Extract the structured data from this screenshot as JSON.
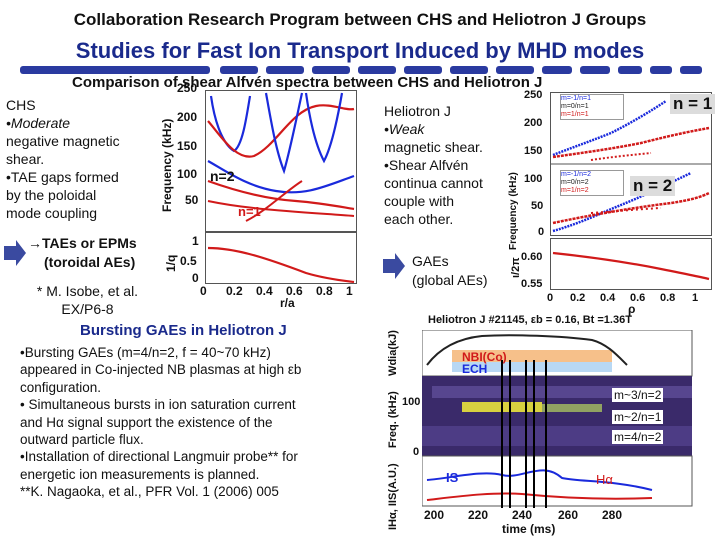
{
  "header": {
    "title": "Collaboration Research Program between CHS and Heliotron J Groups",
    "subtitle": "Studies for Fast Ion Transport Induced by MHD modes",
    "comparison": "Comparison of shear Alfvén spectra between CHS and Heliotron J"
  },
  "chs": {
    "heading": "CHS",
    "bullets": [
      "•Moderate",
      "negative magnetic",
      "shear.",
      "•TAE gaps formed",
      "by the poloidal",
      "mode coupling",
      "→TAEs or EPMs",
      "(toroidal AEs)"
    ],
    "ref": "* M. Isobe, et al.",
    "ref2": "EX/P6-8",
    "plot": {
      "ylabel_top": "Frequency (kHz)",
      "ylabel_bottom": "1/q",
      "xlabel": "r/a",
      "yticks_top": [
        "250",
        "200",
        "150",
        "100",
        "50"
      ],
      "yticks_bottom": [
        "1",
        "0.5",
        "0"
      ],
      "xticks": [
        "0",
        "0.2",
        "0.4",
        "0.6",
        "0.8",
        "1"
      ],
      "label_n2": "n=2",
      "label_n1": "n=1"
    }
  },
  "hj": {
    "heading": "Heliotron J",
    "bullets": [
      "•Weak",
      "magnetic shear.",
      "•Shear Alfvén",
      "continua cannot",
      "couple with",
      "each other."
    ],
    "gaes": "GAEs",
    "gaes2": "(global AEs)",
    "plot": {
      "ylabel": "Frequency (kHz)",
      "yticks": [
        "250",
        "200",
        "150",
        "100",
        "50",
        "0"
      ],
      "label_n1": "n = 1",
      "label_n2": "n = 2",
      "legend_n1": [
        "m=-1/n=1",
        "m=0/n=1",
        "m=1/n=1"
      ],
      "legend_n2": [
        "m=-1/n=2",
        "m=0/n=2",
        "m=1/n=2"
      ],
      "ylabel_bottom": "ι/2π",
      "yticks_bottom": [
        "0.60",
        "0.55"
      ],
      "xlabel": "ρ",
      "xticks": [
        "0",
        "0.2",
        "0.4",
        "0.6",
        "0.8",
        "1"
      ]
    }
  },
  "burst": {
    "title": "Bursting GAEs in Heliotron J",
    "lines": [
      "•Bursting GAEs (m=4/n=2, f = 40~70 kHz)",
      "appeared in Co-injected NB plasmas at high εb",
      "configuration.",
      "• Simultaneous bursts in ion saturation current",
      "and Hα signal support the existence of the",
      "outward particle flux.",
      "•Installation of directional Langmuir probe** for",
      "energetic ion measurements is planned.",
      "**K. Nagaoka, et al., PFR Vol. 1 (2006) 005"
    ]
  },
  "shot": {
    "title": "Heliotron J  #21145, εb = 0.16, Bt =1.36T",
    "nbi": "NBI(Co)",
    "ech": "ECH",
    "wdia": "Wdia(kJ)",
    "freq": "Freq. (kHz)",
    "is_label": "IHα, IIS(A.U.)",
    "tick100": "100",
    "tick0": "0",
    "modes": [
      "m~3/n=2",
      "m~2/n=1",
      "m=4/n=2"
    ],
    "is_trace": "IS",
    "ha_trace": "Hα",
    "xticks": [
      "200",
      "220",
      "240",
      "260",
      "280"
    ],
    "xlabel": "time (ms)"
  },
  "colors": {
    "accent": "#1a2a8c",
    "red": "#d11a1a",
    "blue": "#1a2adc"
  }
}
